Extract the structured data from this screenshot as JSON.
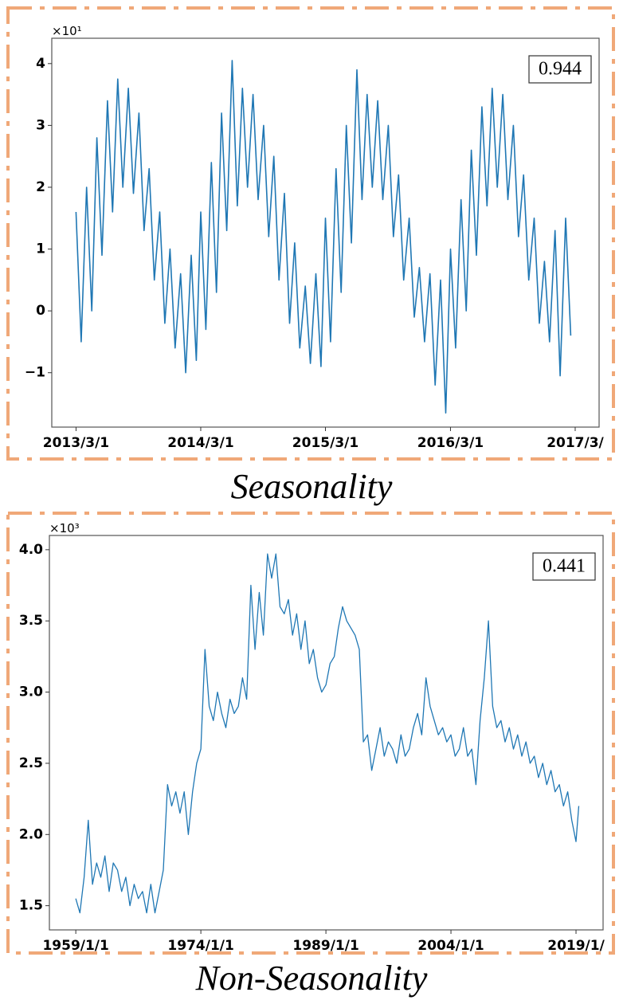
{
  "chart_data": [
    {
      "type": "line",
      "caption": "Seasonality",
      "annotation": "0.944",
      "y_multiplier": "×10¹",
      "color": "#1f77b4",
      "xlim": [
        "2012/12/20",
        "2017/5/10"
      ],
      "xticks": [
        "2013/3/1",
        "2014/3/1",
        "2015/3/1",
        "2016/3/1",
        {
          "value": "2017/3/1",
          "label": "2017/3/"
        }
      ],
      "ylim": [
        -1.88,
        4.41
      ],
      "yticks": [
        {
          "value": -1,
          "label": "−1"
        },
        0,
        1,
        2,
        3,
        4
      ],
      "x": [
        "2013/3/1",
        "2013/3/16",
        "2013/4/1",
        "2013/4/16",
        "2013/5/1",
        "2013/5/16",
        "2013/6/1",
        "2013/6/16",
        "2013/7/1",
        "2013/7/16",
        "2013/8/1",
        "2013/8/16",
        "2013/9/1",
        "2013/9/16",
        "2013/10/1",
        "2013/10/16",
        "2013/11/1",
        "2013/11/16",
        "2013/12/1",
        "2013/12/16",
        "2014/1/1",
        "2014/1/16",
        "2014/2/1",
        "2014/2/16",
        "2014/3/1",
        "2014/3/16",
        "2014/4/1",
        "2014/4/16",
        "2014/5/1",
        "2014/5/16",
        "2014/6/1",
        "2014/6/16",
        "2014/7/1",
        "2014/7/16",
        "2014/8/1",
        "2014/8/16",
        "2014/9/1",
        "2014/9/16",
        "2014/10/1",
        "2014/10/16",
        "2014/11/1",
        "2014/11/16",
        "2014/12/1",
        "2014/12/16",
        "2015/1/1",
        "2015/1/16",
        "2015/2/1",
        "2015/2/16",
        "2015/3/1",
        "2015/3/16",
        "2015/4/1",
        "2015/4/16",
        "2015/5/1",
        "2015/5/16",
        "2015/6/1",
        "2015/6/16",
        "2015/7/1",
        "2015/7/16",
        "2015/8/1",
        "2015/8/16",
        "2015/9/1",
        "2015/9/16",
        "2015/10/1",
        "2015/10/16",
        "2015/11/1",
        "2015/11/16",
        "2015/12/1",
        "2015/12/16",
        "2016/1/1",
        "2016/1/16",
        "2016/2/1",
        "2016/2/16",
        "2016/3/1",
        "2016/3/16",
        "2016/4/1",
        "2016/4/16",
        "2016/5/1",
        "2016/5/16",
        "2016/6/1",
        "2016/6/16",
        "2016/7/1",
        "2016/7/16",
        "2016/8/1",
        "2016/8/16",
        "2016/9/1",
        "2016/9/16",
        "2016/10/1",
        "2016/10/16",
        "2016/11/1",
        "2016/11/16",
        "2016/12/1",
        "2016/12/16",
        "2017/1/1",
        "2017/1/16",
        "2017/2/1",
        "2017/2/16"
      ],
      "values": [
        1.6,
        -0.5,
        2.0,
        0.0,
        2.8,
        0.9,
        3.4,
        1.6,
        3.75,
        2.0,
        3.6,
        1.9,
        3.2,
        1.3,
        2.3,
        0.5,
        1.6,
        -0.2,
        1.0,
        -0.6,
        0.6,
        -1.0,
        0.9,
        -0.8,
        1.6,
        -0.3,
        2.4,
        0.3,
        3.2,
        1.3,
        4.05,
        1.7,
        3.6,
        2.0,
        3.5,
        1.8,
        3.0,
        1.2,
        2.5,
        0.5,
        1.9,
        -0.2,
        1.1,
        -0.6,
        0.4,
        -0.85,
        0.6,
        -0.9,
        1.5,
        -0.5,
        2.3,
        0.3,
        3.0,
        1.1,
        3.9,
        1.8,
        3.5,
        2.0,
        3.4,
        1.8,
        3.0,
        1.2,
        2.2,
        0.5,
        1.5,
        -0.1,
        0.7,
        -0.5,
        0.6,
        -1.2,
        0.5,
        -1.65,
        1.0,
        -0.6,
        1.8,
        0.0,
        2.6,
        0.9,
        3.3,
        1.7,
        3.6,
        2.0,
        3.5,
        1.8,
        3.0,
        1.2,
        2.2,
        0.5,
        1.5,
        -0.2,
        0.8,
        -0.5,
        1.3,
        -1.05,
        1.5,
        -0.4
      ]
    },
    {
      "type": "line",
      "caption": "Non-Seasonality",
      "annotation": "0.441",
      "y_multiplier": "×10³",
      "color": "#1f77b4",
      "xlim": [
        "1955/11/1",
        "2022/4/1"
      ],
      "xticks": [
        "1959/1/1",
        "1974/1/1",
        "1989/1/1",
        "2004/1/1",
        {
          "value": "2019/1/1",
          "label": "2019/1/"
        }
      ],
      "ylim": [
        1.33,
        4.1
      ],
      "yticks": [
        1.5,
        {
          "value": 2,
          "label": "2.0"
        },
        2.5,
        {
          "value": 3,
          "label": "3.0"
        },
        3.5,
        {
          "value": 4,
          "label": "4.0"
        }
      ],
      "x": [
        "1959/1/1",
        "1959/7/1",
        "1960/1/1",
        "1960/7/1",
        "1961/1/1",
        "1961/7/1",
        "1962/1/1",
        "1962/7/1",
        "1963/1/1",
        "1963/7/1",
        "1964/1/1",
        "1964/7/1",
        "1965/1/1",
        "1965/7/1",
        "1966/1/1",
        "1966/7/1",
        "1967/1/1",
        "1967/7/1",
        "1968/1/1",
        "1968/7/1",
        "1969/1/1",
        "1969/7/1",
        "1970/1/1",
        "1970/7/1",
        "1971/1/1",
        "1971/7/1",
        "1972/1/1",
        "1972/7/1",
        "1973/1/1",
        "1973/7/1",
        "1974/1/1",
        "1974/7/1",
        "1975/1/1",
        "1975/7/1",
        "1976/1/1",
        "1976/7/1",
        "1977/1/1",
        "1977/7/1",
        "1978/1/1",
        "1978/7/1",
        "1979/1/1",
        "1979/7/1",
        "1980/1/1",
        "1980/7/1",
        "1981/1/1",
        "1981/7/1",
        "1982/1/1",
        "1982/7/1",
        "1983/1/1",
        "1983/7/1",
        "1984/1/1",
        "1984/7/1",
        "1985/1/1",
        "1985/7/1",
        "1986/1/1",
        "1986/7/1",
        "1987/1/1",
        "1987/7/1",
        "1988/1/1",
        "1988/7/1",
        "1989/1/1",
        "1989/7/1",
        "1990/1/1",
        "1990/7/1",
        "1991/1/1",
        "1991/7/1",
        "1992/1/1",
        "1992/7/1",
        "1993/1/1",
        "1993/7/1",
        "1994/1/1",
        "1994/7/1",
        "1995/1/1",
        "1995/7/1",
        "1996/1/1",
        "1996/7/1",
        "1997/1/1",
        "1997/7/1",
        "1998/1/1",
        "1998/7/1",
        "1999/1/1",
        "1999/7/1",
        "2000/1/1",
        "2000/7/1",
        "2001/1/1",
        "2001/7/1",
        "2002/1/1",
        "2002/7/1",
        "2003/1/1",
        "2003/7/1",
        "2004/1/1",
        "2004/7/1",
        "2005/1/1",
        "2005/7/1",
        "2006/1/1",
        "2006/7/1",
        "2007/1/1",
        "2007/7/1",
        "2008/1/1",
        "2008/7/1",
        "2009/1/1",
        "2009/7/1",
        "2010/1/1",
        "2010/7/1",
        "2011/1/1",
        "2011/7/1",
        "2012/1/1",
        "2012/7/1",
        "2013/1/1",
        "2013/7/1",
        "2014/1/1",
        "2014/7/1",
        "2015/1/1",
        "2015/7/1",
        "2016/1/1",
        "2016/7/1",
        "2017/1/1",
        "2017/7/1",
        "2018/1/1",
        "2018/7/1",
        "2019/1/1",
        "2019/5/1"
      ],
      "values": [
        1.55,
        1.45,
        1.7,
        2.1,
        1.65,
        1.8,
        1.7,
        1.85,
        1.6,
        1.8,
        1.75,
        1.6,
        1.7,
        1.5,
        1.65,
        1.55,
        1.6,
        1.45,
        1.65,
        1.45,
        1.6,
        1.75,
        2.35,
        2.2,
        2.3,
        2.15,
        2.3,
        2.0,
        2.3,
        2.5,
        2.6,
        3.3,
        2.9,
        2.8,
        3.0,
        2.85,
        2.75,
        2.95,
        2.85,
        2.9,
        3.1,
        2.95,
        3.75,
        3.3,
        3.7,
        3.4,
        3.97,
        3.8,
        3.97,
        3.6,
        3.55,
        3.65,
        3.4,
        3.55,
        3.3,
        3.5,
        3.2,
        3.3,
        3.1,
        3.0,
        3.05,
        3.2,
        3.25,
        3.45,
        3.6,
        3.5,
        3.45,
        3.4,
        3.3,
        2.65,
        2.7,
        2.45,
        2.6,
        2.75,
        2.55,
        2.65,
        2.6,
        2.5,
        2.7,
        2.55,
        2.6,
        2.75,
        2.85,
        2.7,
        3.1,
        2.9,
        2.8,
        2.7,
        2.75,
        2.65,
        2.7,
        2.55,
        2.6,
        2.75,
        2.55,
        2.6,
        2.35,
        2.8,
        3.1,
        3.5,
        2.9,
        2.75,
        2.8,
        2.65,
        2.75,
        2.6,
        2.7,
        2.55,
        2.65,
        2.5,
        2.55,
        2.4,
        2.5,
        2.35,
        2.45,
        2.3,
        2.35,
        2.2,
        2.3,
        2.1,
        1.95,
        2.2
      ]
    }
  ]
}
